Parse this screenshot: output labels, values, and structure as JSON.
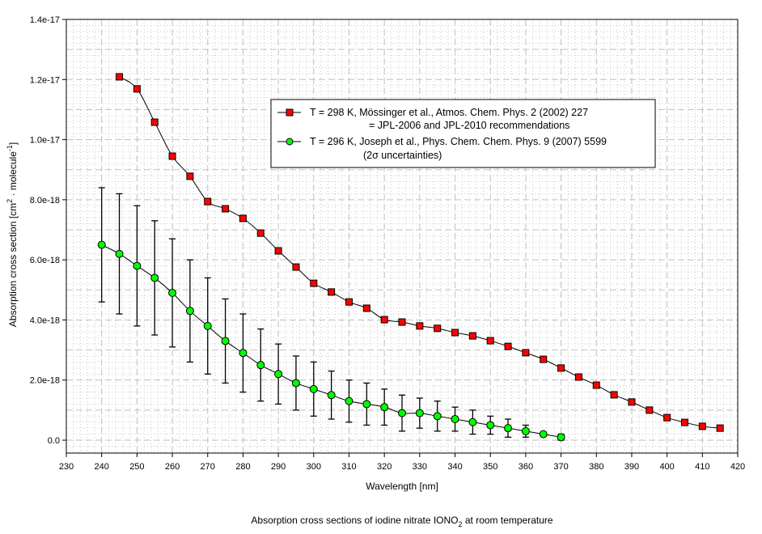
{
  "chart_data": {
    "type": "scatter",
    "title": "Absorption cross sections of iodine nitrate IONO",
    "title_sub": "2",
    "title_tail": " at room temperature",
    "xlabel": "Wavelength [nm]",
    "ylabel_main": "Absorption cross section [cm",
    "ylabel_sup1": "2",
    "ylabel_mid": " · molecule",
    "ylabel_sup2": "-1",
    "ylabel_end": "]",
    "xlim": [
      230,
      420
    ],
    "ylim": [
      -4.3e-19,
      1.4e-17
    ],
    "grid": true,
    "legend_position": "upper-right",
    "x_ticks": [
      230,
      240,
      250,
      260,
      270,
      280,
      290,
      300,
      310,
      320,
      330,
      340,
      350,
      360,
      370,
      380,
      390,
      400,
      410,
      420
    ],
    "x_tick_labels": [
      "230",
      "240",
      "250",
      "260",
      "270",
      "280",
      "290",
      "300",
      "310",
      "320",
      "330",
      "340",
      "350",
      "360",
      "370",
      "380",
      "390",
      "400",
      "410",
      "420"
    ],
    "y_ticks": [
      0,
      2e-18,
      4e-18,
      6e-18,
      8e-18,
      1e-17,
      1.2e-17,
      1.4e-17
    ],
    "y_tick_labels": [
      "0.0",
      "2.0e-18",
      "4.0e-18",
      "6.0e-18",
      "8.0e-18",
      "1.0e-17",
      "1.2e-17",
      "1.4e-17"
    ],
    "series": [
      {
        "name": "T = 298 K, Mössinger et al., Atmos. Chem. Phys. 2 (2002) 227",
        "name_line2": "= JPL-2006 and JPL-2010 recommendations",
        "color": "#ff0000",
        "marker": "square",
        "x": [
          245,
          250,
          255,
          260,
          265,
          270,
          275,
          280,
          285,
          290,
          295,
          300,
          305,
          310,
          315,
          320,
          325,
          330,
          335,
          340,
          345,
          350,
          355,
          360,
          365,
          370,
          375,
          380,
          385,
          390,
          395,
          400,
          405,
          410,
          415
        ],
        "y": [
          1.209e-17,
          1.169e-17,
          1.058e-17,
          9.45e-18,
          8.78e-18,
          7.94e-18,
          7.7e-18,
          7.38e-18,
          6.89e-18,
          6.3e-18,
          5.76e-18,
          5.22e-18,
          4.93e-18,
          4.6e-18,
          4.39e-18,
          4.01e-18,
          3.93e-18,
          3.8e-18,
          3.72e-18,
          3.58e-18,
          3.47e-18,
          3.31e-18,
          3.12e-18,
          2.91e-18,
          2.69e-18,
          2.4e-18,
          2.1e-18,
          1.83e-18,
          1.51e-18,
          1.27e-18,
          1e-18,
          7.5e-19,
          5.9e-19,
          4.6e-19,
          4e-19
        ]
      },
      {
        "name": "T = 296 K, Joseph et al., Phys. Chem. Chem. Phys. 9 (2007) 5599",
        "name_line2": "(2σ uncertainties)",
        "color": "#00ff00",
        "marker": "circle",
        "x": [
          240,
          245,
          250,
          255,
          260,
          265,
          270,
          275,
          280,
          285,
          290,
          295,
          300,
          305,
          310,
          315,
          320,
          325,
          330,
          335,
          340,
          345,
          350,
          355,
          360,
          365,
          370
        ],
        "y": [
          6.5e-18,
          6.2e-18,
          5.8e-18,
          5.4e-18,
          4.9e-18,
          4.3e-18,
          3.8e-18,
          3.3e-18,
          2.9e-18,
          2.5e-18,
          2.2e-18,
          1.9e-18,
          1.7e-18,
          1.5e-18,
          1.3e-18,
          1.2e-18,
          1.1e-18,
          9e-19,
          9e-19,
          8e-19,
          7e-19,
          6e-19,
          5e-19,
          4e-19,
          3e-19,
          2e-19,
          1e-19
        ],
        "y_low": [
          4.6e-18,
          4.2e-18,
          3.8e-18,
          3.5e-18,
          3.1e-18,
          2.6e-18,
          2.2e-18,
          1.9e-18,
          1.6e-18,
          1.3e-18,
          1.2e-18,
          1e-18,
          8e-19,
          7e-19,
          6e-19,
          5e-19,
          5e-19,
          3e-19,
          4e-19,
          3e-19,
          3e-19,
          2e-19,
          2e-19,
          1e-19,
          1e-19,
          1.5e-19,
          0
        ],
        "y_high": [
          8.4e-18,
          8.2e-18,
          7.8e-18,
          7.3e-18,
          6.7e-18,
          6e-18,
          5.4e-18,
          4.7e-18,
          4.2e-18,
          3.7e-18,
          3.2e-18,
          2.8e-18,
          2.6e-18,
          2.3e-18,
          2e-18,
          1.9e-18,
          1.7e-18,
          1.5e-18,
          1.4e-18,
          1.3e-18,
          1.1e-18,
          1e-18,
          8e-19,
          7e-19,
          5e-19,
          2.5e-19,
          2e-19
        ]
      }
    ]
  }
}
